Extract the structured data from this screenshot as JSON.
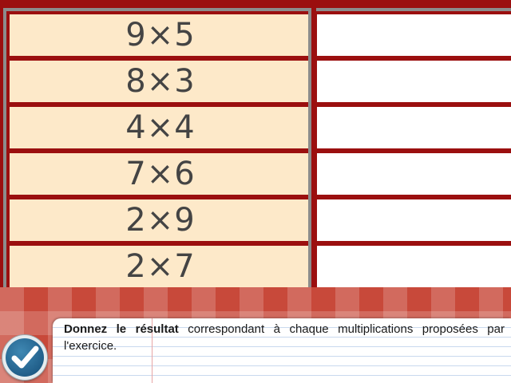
{
  "exercise": {
    "rows": [
      {
        "question": "9×5",
        "answer": ""
      },
      {
        "question": "8×3",
        "answer": ""
      },
      {
        "question": "4×4",
        "answer": ""
      },
      {
        "question": "7×6",
        "answer": ""
      },
      {
        "question": "2×9",
        "answer": ""
      },
      {
        "question": "2×7",
        "answer": ""
      }
    ]
  },
  "instruction": {
    "bold": "Donnez le résultat",
    "text": " correspondant à chaque multiplications proposées par l'exercice."
  },
  "validate_button": {
    "icon": "checkmark-icon"
  },
  "colors": {
    "question_bg": "#fde9c9",
    "grid_bg": "#9b0f0f",
    "tablecloth": "#c8493a",
    "button_blue": "#215f8a"
  }
}
